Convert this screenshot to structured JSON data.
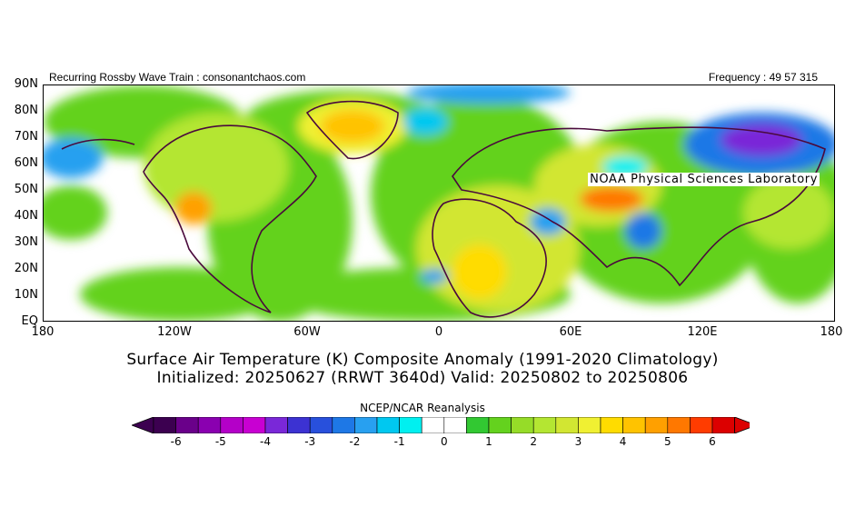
{
  "header": {
    "left": "Recurring Rossby Wave Train : consonantchaos.com",
    "right": "Frequency : 49 57 315"
  },
  "map": {
    "credit": "NOAA Physical Sciences Laboratory",
    "lat_labels": [
      "90N",
      "80N",
      "70N",
      "60N",
      "50N",
      "40N",
      "30N",
      "20N",
      "10N",
      "EQ"
    ],
    "lon_labels": [
      "180",
      "120W",
      "60W",
      "0",
      "60E",
      "120E",
      "180"
    ],
    "anomaly_palette": {
      "neg": [
        "#3c0050",
        "#6a008a",
        "#8a00b0",
        "#b400c8",
        "#c800d2",
        "#7a28d8",
        "#3c32d2",
        "#2850dc",
        "#1e78e6",
        "#28a0f0",
        "#00c8f0",
        "#00f0f0"
      ],
      "neutral": "#ffffff",
      "pos": [
        "#32c832",
        "#64d21e",
        "#96dc28",
        "#b4e632",
        "#d2e632",
        "#f0f032",
        "#ffdc00",
        "#ffc300",
        "#ffa000",
        "#ff7800",
        "#ff3c00",
        "#dc0000"
      ]
    }
  },
  "titles": {
    "line1": "Surface Air Temperature (K) Composite Anomaly (1991-2020 Climatology)",
    "line2": "Initialized: 20250627 (RRWT 3640d) Valid: 20250802 to 20250806"
  },
  "colorbar": {
    "title": "NCEP/NCAR Reanalysis",
    "labels": [
      "-6",
      "-5",
      "-4",
      "-3",
      "-2",
      "-1",
      "0",
      "1",
      "2",
      "3",
      "4",
      "5",
      "6"
    ],
    "colors": [
      "#3c0050",
      "#6a008a",
      "#8a00b0",
      "#b400c8",
      "#c800d2",
      "#7a28d8",
      "#3c32d2",
      "#2850dc",
      "#1e78e6",
      "#28a0f0",
      "#00c8f0",
      "#00f0f0",
      "#ffffff",
      "#ffffff",
      "#32c832",
      "#64d21e",
      "#96dc28",
      "#b4e632",
      "#d2e632",
      "#f0f032",
      "#ffdc00",
      "#ffc300",
      "#ffa000",
      "#ff7800",
      "#ff3c00",
      "#dc0000"
    ]
  }
}
